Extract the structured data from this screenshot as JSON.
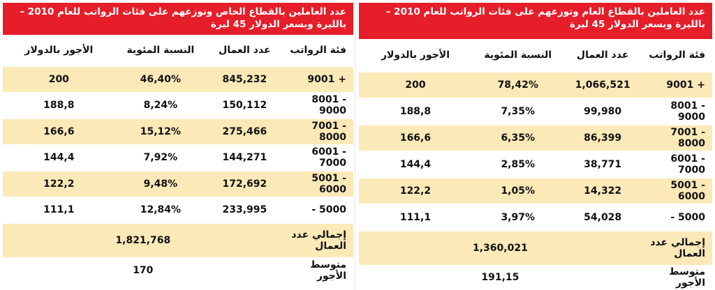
{
  "columns": [
    "فئة الرواتب",
    "عدد العمال",
    "النسبة المئوية",
    "الأجور بالدولار"
  ],
  "private": {
    "title": "عدد العاملين بالقطاع الخاص وتوزعهم على فئات الرواتب للعام 2010 – بالليرة وبسعر الدولار 45 ليرة",
    "rows": [
      {
        "cat": "9001 +",
        "workers": "845,232",
        "pct": "46,40%",
        "usd": "200"
      },
      {
        "cat": "8001 - 9000",
        "workers": "150,112",
        "pct": "8,24%",
        "usd": "188,8"
      },
      {
        "cat": "7001 - 8000",
        "workers": "275,466",
        "pct": "15,12%",
        "usd": "166,6"
      },
      {
        "cat": "6001 - 7000",
        "workers": "144,271",
        "pct": "7,92%",
        "usd": "144,4"
      },
      {
        "cat": "5001 - 6000",
        "workers": "172,692",
        "pct": "9,48%",
        "usd": "122,2"
      },
      {
        "cat": "- 5000",
        "workers": "233,995",
        "pct": "12,84%",
        "usd": "111,1"
      }
    ],
    "total_label": "إجمالي عدد العمال",
    "total_value": "1,821,768",
    "avg_label": "متوسط الأجور",
    "avg_value": "170"
  },
  "public": {
    "title": "عدد العاملين بالقطاع العام وتوزعهم على فئات الرواتب للعام 2010 – بالليرة وبسعر الدولار 45 ليرة",
    "rows": [
      {
        "cat": "9001 +",
        "workers": "1,066,521",
        "pct": "78,42%",
        "usd": "200"
      },
      {
        "cat": "8001 - 9000",
        "workers": "99,980",
        "pct": "7,35%",
        "usd": "188,8"
      },
      {
        "cat": "7001 - 8000",
        "workers": "86,399",
        "pct": "6,35%",
        "usd": "166,6"
      },
      {
        "cat": "6001 - 7000",
        "workers": "38,771",
        "pct": "2,85%",
        "usd": "144,4"
      },
      {
        "cat": "5001 - 6000",
        "workers": "14,322",
        "pct": "1,05%",
        "usd": "122,2"
      },
      {
        "cat": "- 5000",
        "workers": "54,028",
        "pct": "3,97%",
        "usd": "111,1"
      }
    ],
    "total_label": "إجمالي عدد العمال",
    "total_value": "1,360,021",
    "avg_label": "متوسط الأجور",
    "avg_value": "191,15"
  },
  "colors": {
    "header_red": "#e61e2a",
    "row_stripe": "#fbe9b8"
  }
}
